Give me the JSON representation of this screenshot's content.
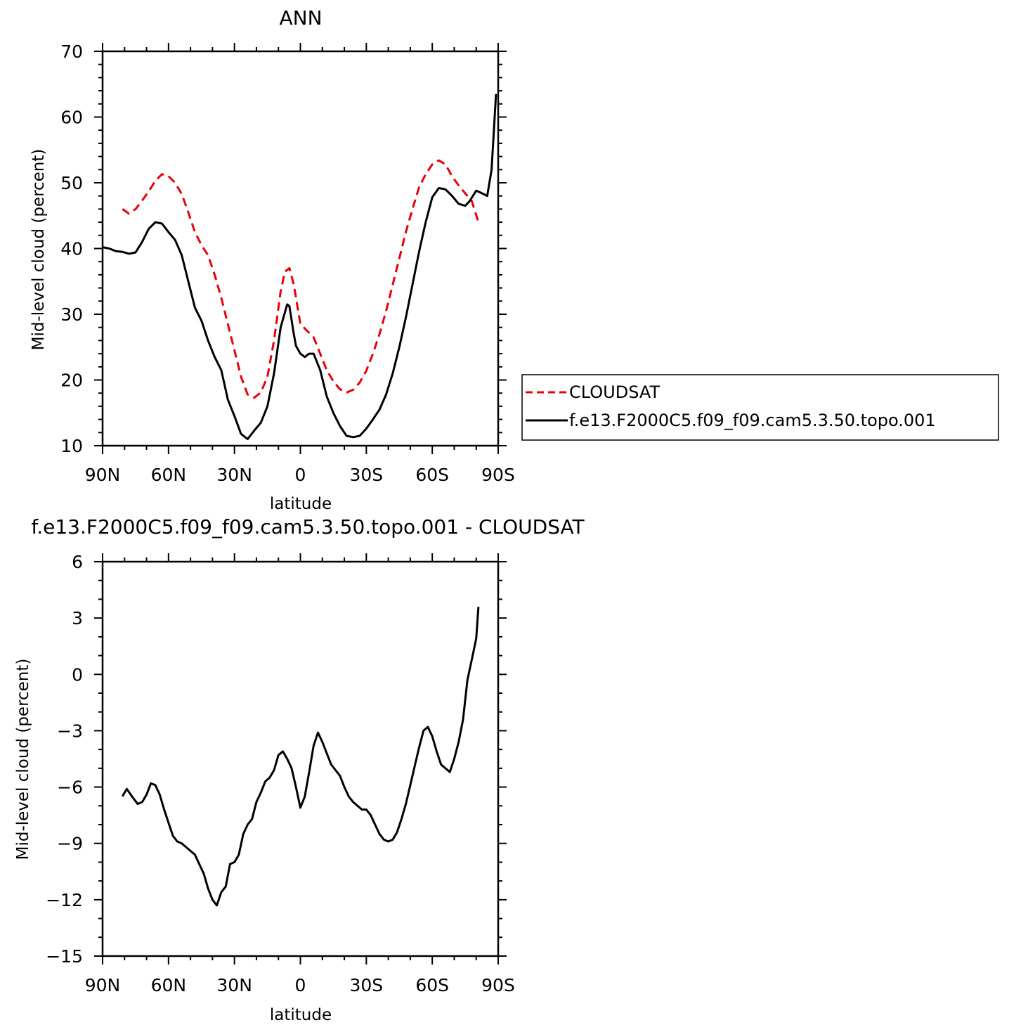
{
  "chart_data": [
    {
      "type": "line",
      "title": "ANN",
      "xlabel": "latitude",
      "ylabel": "Mid-level cloud (percent)",
      "xlim": [
        90,
        -90
      ],
      "ylim": [
        10,
        70
      ],
      "x_ticks": [
        90,
        60,
        30,
        0,
        -30,
        -60,
        -90
      ],
      "x_tick_labels": [
        "90N",
        "60N",
        "30N",
        "0",
        "30S",
        "60S",
        "90S"
      ],
      "y_ticks": [
        10,
        20,
        30,
        40,
        50,
        60,
        70
      ],
      "y_tick_labels": [
        "10",
        "20",
        "30",
        "40",
        "50",
        "60",
        "70"
      ],
      "series": [
        {
          "name": "CLOUDSAT",
          "color": "#e8000b",
          "dash": "dashed",
          "x": [
            81,
            78,
            75,
            72,
            69,
            66,
            63,
            60,
            57,
            54,
            51,
            48,
            45,
            42,
            39,
            36,
            33,
            30,
            27,
            24,
            21,
            18,
            15,
            12,
            9,
            7,
            5,
            3,
            0,
            -3,
            -6,
            -9,
            -12,
            -15,
            -18,
            -21,
            -24,
            -27,
            -30,
            -33,
            -36,
            -39,
            -42,
            -45,
            -48,
            -51,
            -54,
            -57,
            -60,
            -63,
            -66,
            -69,
            -72,
            -75,
            -78,
            -81
          ],
          "y": [
            46,
            45.3,
            46,
            47.3,
            48.7,
            50.3,
            51.3,
            51,
            50,
            48.3,
            45.5,
            42.5,
            40.5,
            39,
            36,
            32.5,
            28.5,
            24.5,
            20.5,
            17.8,
            17.3,
            18.1,
            20.5,
            26,
            33.5,
            36.5,
            37,
            34.5,
            28.5,
            27.5,
            26.5,
            24,
            21.5,
            19.8,
            18.6,
            18.1,
            18.5,
            19.6,
            21.4,
            24,
            27,
            30.5,
            34.5,
            38.5,
            42.5,
            46,
            49.3,
            51.3,
            52.8,
            53.4,
            52.8,
            51,
            49.6,
            48.4,
            47.2,
            44
          ]
        },
        {
          "name": "f.e13.F2000C5.f09_f09.cam5.3.50.topo.001",
          "color": "#000000",
          "dash": "solid",
          "x": [
            90,
            87,
            84,
            81,
            78,
            75,
            72,
            69,
            66,
            63,
            60,
            57,
            54,
            51,
            48,
            45,
            42,
            39,
            36,
            33,
            30,
            27,
            24,
            21,
            18,
            15,
            12,
            9,
            6,
            5,
            3,
            2,
            0,
            -2,
            -4,
            -6,
            -9,
            -12,
            -15,
            -18,
            -21,
            -24,
            -27,
            -30,
            -33,
            -36,
            -39,
            -42,
            -45,
            -48,
            -51,
            -54,
            -57,
            -60,
            -63,
            -66,
            -69,
            -72,
            -75,
            -77,
            -80,
            -82,
            -85,
            -87,
            -89
          ],
          "y": [
            40.2,
            40,
            39.6,
            39.5,
            39.2,
            39.4,
            41,
            43,
            44,
            43.8,
            42.5,
            41.3,
            39,
            35,
            31,
            29,
            26,
            23.5,
            21.5,
            17,
            14.5,
            11.8,
            11,
            12.3,
            13.5,
            16,
            21,
            28,
            31.5,
            31.2,
            27,
            25.2,
            24,
            23.5,
            24,
            24,
            21.5,
            17.5,
            15,
            13,
            11.5,
            11.3,
            11.5,
            12.6,
            14,
            15.5,
            17.8,
            21,
            25,
            29.5,
            34.5,
            39.5,
            44,
            47.8,
            49.2,
            49,
            48,
            46.8,
            46.5,
            47.2,
            48.8,
            48.5,
            48,
            52,
            63.5
          ]
        }
      ],
      "legend": {
        "placement": "right",
        "entries": [
          "CLOUDSAT",
          "f.e13.F2000C5.f09_f09.cam5.3.50.topo.001"
        ]
      }
    },
    {
      "type": "line",
      "title": "f.e13.F2000C5.f09_f09.cam5.3.50.topo.001  -  CLOUDSAT",
      "xlabel": "latitude",
      "ylabel": "Mid-level cloud (percent)",
      "xlim": [
        90,
        -90
      ],
      "ylim": [
        -15,
        6
      ],
      "x_ticks": [
        90,
        60,
        30,
        0,
        -30,
        -60,
        -90
      ],
      "x_tick_labels": [
        "90N",
        "60N",
        "30N",
        "0",
        "30S",
        "60S",
        "90S"
      ],
      "y_ticks": [
        -15,
        -12,
        -9,
        -6,
        -3,
        0,
        3,
        6
      ],
      "y_tick_labels": [
        "-15",
        "-12",
        "-9",
        "-6",
        "-3",
        "0",
        "3",
        "6"
      ],
      "series": [
        {
          "color": "#000000",
          "dash": "solid",
          "x": [
            81,
            79,
            76,
            74,
            72,
            70,
            68,
            66,
            64,
            62,
            60,
            58,
            56,
            54,
            52,
            50,
            48,
            46,
            44,
            42,
            40,
            38,
            36,
            34,
            32,
            30,
            28,
            26,
            24,
            22,
            20,
            18,
            16,
            14,
            12,
            10,
            8,
            6,
            4,
            2,
            0,
            -2,
            -4,
            -6,
            -8,
            -10,
            -12,
            -14,
            -16,
            -18,
            -20,
            -22,
            -24,
            -26,
            -28,
            -30,
            -32,
            -34,
            -36,
            -38,
            -40,
            -42,
            -44,
            -46,
            -48,
            -50,
            -52,
            -54,
            -56,
            -58,
            -60,
            -62,
            -64,
            -66,
            -68,
            -70,
            -72,
            -74,
            -76,
            -78,
            -80,
            -81
          ],
          "y": [
            -6.5,
            -6.1,
            -6.6,
            -6.9,
            -6.8,
            -6.4,
            -5.8,
            -5.9,
            -6.4,
            -7.2,
            -7.9,
            -8.6,
            -8.9,
            -9.0,
            -9.2,
            -9.4,
            -9.6,
            -10.1,
            -10.6,
            -11.4,
            -12.0,
            -12.3,
            -11.6,
            -11.3,
            -10.1,
            -10.0,
            -9.6,
            -8.5,
            -8.0,
            -7.7,
            -6.8,
            -6.3,
            -5.7,
            -5.5,
            -5.1,
            -4.3,
            -4.1,
            -4.5,
            -5.0,
            -6.0,
            -7.1,
            -6.5,
            -5.2,
            -3.8,
            -3.1,
            -3.6,
            -4.2,
            -4.8,
            -5.1,
            -5.4,
            -6.0,
            -6.5,
            -6.8,
            -7.0,
            -7.2,
            -7.2,
            -7.5,
            -8.0,
            -8.5,
            -8.8,
            -8.9,
            -8.8,
            -8.4,
            -7.7,
            -6.9,
            -5.9,
            -4.9,
            -3.9,
            -3.0,
            -2.8,
            -3.3,
            -4.1,
            -4.8,
            -5.0,
            -5.2,
            -4.5,
            -3.6,
            -2.4,
            -0.3,
            0.8,
            1.9,
            3.6
          ]
        }
      ]
    }
  ]
}
